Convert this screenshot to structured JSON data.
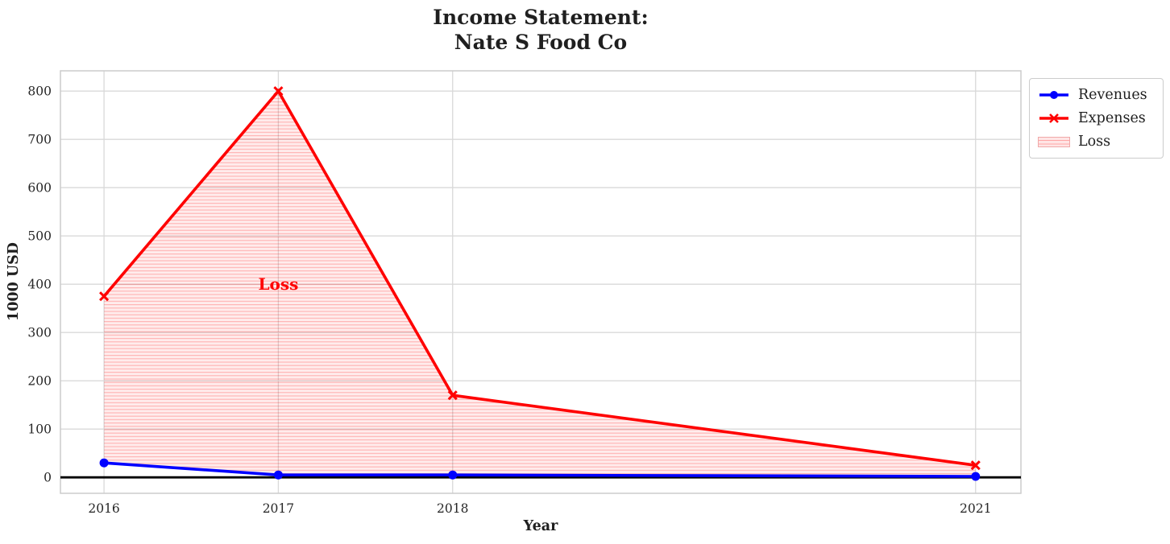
{
  "chart_data": {
    "type": "line",
    "title": "Income Statement:\nNate S Food Co",
    "title_lines": [
      "Income Statement:",
      "Nate S Food Co"
    ],
    "xlabel": "Year",
    "ylabel": "1000 USD",
    "x": [
      2016,
      2017,
      2018,
      2021
    ],
    "series": [
      {
        "name": "Revenues",
        "color": "#0000ff",
        "marker": "circle",
        "values": [
          30,
          5,
          5,
          2
        ]
      },
      {
        "name": "Expenses",
        "color": "#ff0000",
        "marker": "x",
        "values": [
          375,
          800,
          170,
          25
        ]
      }
    ],
    "loss_fill": {
      "label": "Loss",
      "between": [
        "Revenues",
        "Expenses"
      ],
      "facecolor": "#ff0000",
      "alpha": 0.08,
      "hatch": "horizontal"
    },
    "annotation": {
      "text": "Loss",
      "x": 2017,
      "y": 400,
      "color": "#ff0000"
    },
    "xticks": [
      2016,
      2017,
      2018,
      2021
    ],
    "yticks": [
      0,
      100,
      200,
      300,
      400,
      500,
      600,
      700,
      800
    ],
    "xlim": [
      2015.75,
      2021.26
    ],
    "ylim": [
      -33,
      842
    ],
    "grid": true,
    "zero_line": {
      "y": 0,
      "color": "#000000"
    },
    "legend": {
      "position": "outside-top-right",
      "entries": [
        "Revenues",
        "Expenses",
        "Loss"
      ]
    },
    "colors": {
      "grid": "#d9d9d9",
      "spine": "#cccccc",
      "tick_text": "#262626"
    }
  }
}
